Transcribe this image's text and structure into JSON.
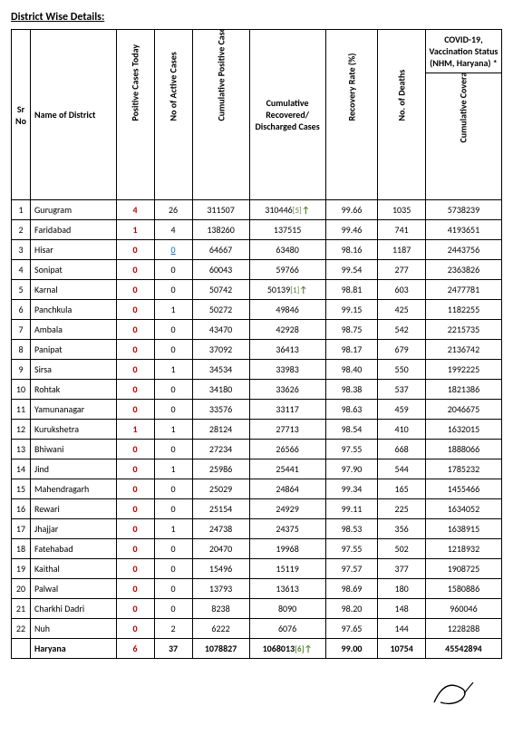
{
  "title": "District Wise Details:",
  "super_header": "COVID-19, Vaccination Status (NHM, Haryana) *",
  "headers": {
    "sr": "Sr No",
    "name": "Name of District",
    "today": "Positive Cases Today",
    "active": "No of Active Cases",
    "cum": "Cumulative Positive Cases",
    "rec": "Cumulative Recovered/ Discharged Cases",
    "rate": "Recovery Rate (%)",
    "deaths": "No. of Deaths",
    "vacc": "Cumulative Coverage of Vaccination"
  },
  "rows": [
    {
      "sr": "1",
      "name": "Gurugram",
      "today": "4",
      "active": "26",
      "cum": "311507",
      "rec": "310446",
      "rec_ref": "[5]",
      "rec_arrow": "↑",
      "rate": "99.66",
      "deaths": "1035",
      "vacc": "5738239"
    },
    {
      "sr": "2",
      "name": "Faridabad",
      "today": "1",
      "active": "4",
      "cum": "138260",
      "rec": "137515",
      "rate": "99.46",
      "deaths": "741",
      "vacc": "4193651"
    },
    {
      "sr": "3",
      "name": "Hisar",
      "today": "0",
      "active": "0",
      "active_link": true,
      "cum": "64667",
      "rec": "63480",
      "rate": "98.16",
      "deaths": "1187",
      "vacc": "2443756"
    },
    {
      "sr": "4",
      "name": "Sonipat",
      "today": "0",
      "active": "0",
      "cum": "60043",
      "rec": "59766",
      "rate": "99.54",
      "deaths": "277",
      "vacc": "2363826"
    },
    {
      "sr": "5",
      "name": "Karnal",
      "today": "0",
      "active": "0",
      "cum": "50742",
      "rec": "50139",
      "rec_ref": "[1]",
      "rec_arrow": "↑",
      "rate": "98.81",
      "deaths": "603",
      "vacc": "2477781"
    },
    {
      "sr": "6",
      "name": "Panchkula",
      "today": "0",
      "active": "1",
      "cum": "50272",
      "rec": "49846",
      "rate": "99.15",
      "deaths": "425",
      "vacc": "1182255"
    },
    {
      "sr": "7",
      "name": "Ambala",
      "today": "0",
      "active": "0",
      "cum": "43470",
      "rec": "42928",
      "rate": "98.75",
      "deaths": "542",
      "vacc": "2215735"
    },
    {
      "sr": "8",
      "name": "Panipat",
      "today": "0",
      "active": "0",
      "cum": "37092",
      "rec": "36413",
      "rate": "98.17",
      "deaths": "679",
      "vacc": "2136742"
    },
    {
      "sr": "9",
      "name": "Sirsa",
      "today": "0",
      "active": "1",
      "cum": "34534",
      "rec": "33983",
      "rate": "98.40",
      "deaths": "550",
      "vacc": "1992225"
    },
    {
      "sr": "10",
      "name": "Rohtak",
      "today": "0",
      "active": "0",
      "cum": "34180",
      "rec": "33626",
      "rate": "98.38",
      "deaths": "537",
      "vacc": "1821386"
    },
    {
      "sr": "11",
      "name": "Yamunanagar",
      "today": "0",
      "active": "0",
      "cum": "33576",
      "rec": "33117",
      "rate": "98.63",
      "deaths": "459",
      "vacc": "2046675"
    },
    {
      "sr": "12",
      "name": "Kurukshetra",
      "today": "1",
      "active": "1",
      "cum": "28124",
      "rec": "27713",
      "rate": "98.54",
      "deaths": "410",
      "vacc": "1632015"
    },
    {
      "sr": "13",
      "name": "Bhiwani",
      "today": "0",
      "active": "0",
      "cum": "27234",
      "rec": "26566",
      "rate": "97.55",
      "deaths": "668",
      "vacc": "1888066"
    },
    {
      "sr": "14",
      "name": "Jind",
      "today": "0",
      "active": "1",
      "cum": "25986",
      "rec": "25441",
      "rate": "97.90",
      "deaths": "544",
      "vacc": "1785232"
    },
    {
      "sr": "15",
      "name": "Mahendragarh",
      "today": "0",
      "active": "0",
      "cum": "25029",
      "rec": "24864",
      "rate": "99.34",
      "deaths": "165",
      "vacc": "1455466"
    },
    {
      "sr": "16",
      "name": "Rewari",
      "today": "0",
      "active": "0",
      "cum": "25154",
      "rec": "24929",
      "rate": "99.11",
      "deaths": "225",
      "vacc": "1634052"
    },
    {
      "sr": "17",
      "name": "Jhajjar",
      "today": "0",
      "active": "1",
      "cum": "24738",
      "rec": "24375",
      "rate": "98.53",
      "deaths": "356",
      "vacc": "1638915"
    },
    {
      "sr": "18",
      "name": "Fatehabad",
      "today": "0",
      "active": "0",
      "cum": "20470",
      "rec": "19968",
      "rate": "97.55",
      "deaths": "502",
      "vacc": "1218932"
    },
    {
      "sr": "19",
      "name": "Kaithal",
      "today": "0",
      "active": "0",
      "cum": "15496",
      "rec": "15119",
      "rate": "97.57",
      "deaths": "377",
      "vacc": "1908725"
    },
    {
      "sr": "20",
      "name": "Palwal",
      "today": "0",
      "active": "0",
      "cum": "13793",
      "rec": "13613",
      "rate": "98.69",
      "deaths": "180",
      "vacc": "1580886"
    },
    {
      "sr": "21",
      "name": "Charkhi Dadri",
      "today": "0",
      "active": "0",
      "cum": "8238",
      "rec": "8090",
      "rate": "98.20",
      "deaths": "148",
      "vacc": "960046"
    },
    {
      "sr": "22",
      "name": "Nuh",
      "today": "0",
      "active": "2",
      "cum": "6222",
      "rec": "6076",
      "rate": "97.65",
      "deaths": "144",
      "vacc": "1228288"
    }
  ],
  "total": {
    "name": "Haryana",
    "today": "6",
    "active": "37",
    "cum": "1078827",
    "rec": "1068013",
    "rec_ref": "[6]",
    "rec_arrow": "↑",
    "rate": "99.00",
    "deaths": "10754",
    "vacc": "45542894"
  }
}
